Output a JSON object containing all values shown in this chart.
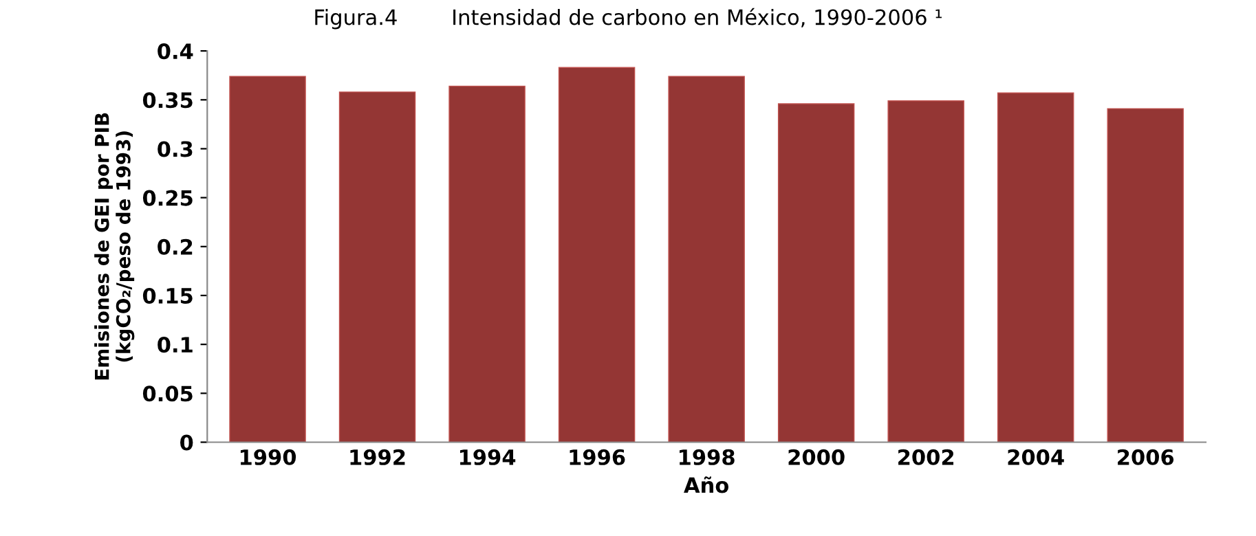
{
  "chart_data": {
    "type": "bar",
    "title": "Figura.4        Intensidad de carbono en México, 1990-2006 ¹",
    "xlabel": "Año",
    "ylabel": "Emisiones de GEI por PIB\n(kgCO₂/peso de 1993)",
    "categories": [
      "1990",
      "1992",
      "1994",
      "1996",
      "1998",
      "2000",
      "2002",
      "2004",
      "2006"
    ],
    "values": [
      0.374,
      0.358,
      0.364,
      0.383,
      0.374,
      0.346,
      0.349,
      0.357,
      0.341
    ],
    "color": "#943634",
    "ylim": [
      0,
      0.4
    ],
    "yticks": [
      {
        "value": 0,
        "label": "0"
      },
      0.05,
      0.1,
      0.15,
      0.2,
      0.25,
      0.3,
      0.35,
      0.4
    ],
    "grid": false,
    "legend": false
  }
}
